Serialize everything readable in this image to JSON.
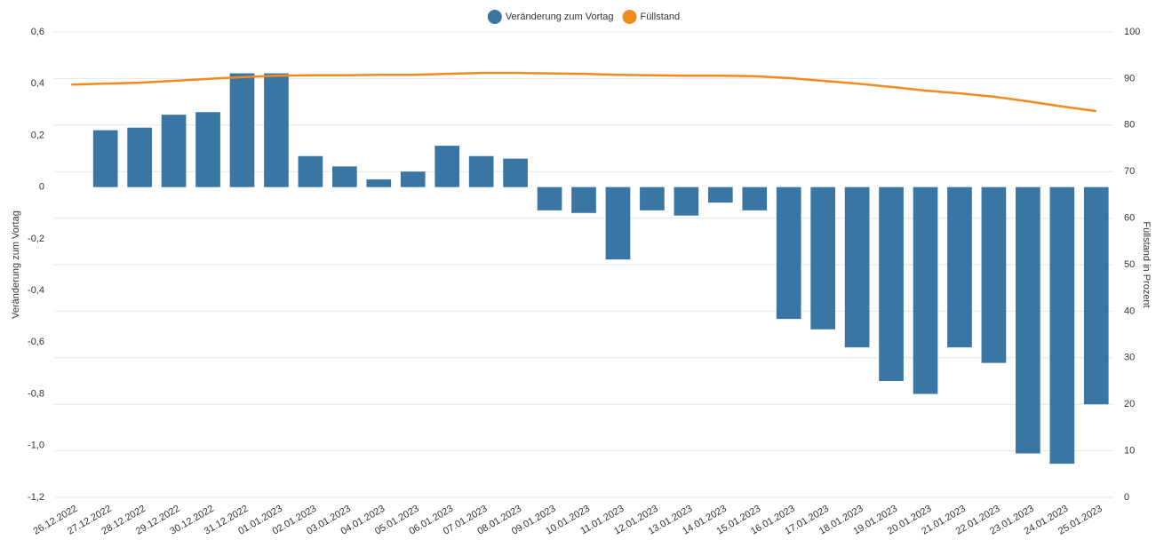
{
  "chart_data": {
    "type": "bar-line",
    "categories": [
      "26.12.2022",
      "27.12.2022",
      "28.12.2022",
      "29.12.2022",
      "30.12.2022",
      "31.12.2022",
      "01.01.2023",
      "02.01.2023",
      "03.01.2023",
      "04.01.2023",
      "05.01.2023",
      "06.01.2023",
      "07.01.2023",
      "08.01.2023",
      "09.01.2023",
      "10.01.2023",
      "11.01.2023",
      "12.01.2023",
      "13.01.2023",
      "14.01.2023",
      "15.01.2023",
      "16.01.2023",
      "17.01.2023",
      "18.01.2023",
      "19.01.2023",
      "20.01.2023",
      "21.01.2023",
      "22.01.2023",
      "23.01.2023",
      "24.01.2023",
      "25.01.2023"
    ],
    "series": [
      {
        "name": "Veränderung zum Vortag",
        "type": "bar",
        "color": "#3a76a3",
        "values": [
          null,
          0.22,
          0.23,
          0.28,
          0.29,
          0.44,
          0.44,
          0.12,
          0.08,
          0.03,
          0.06,
          0.16,
          0.12,
          0.11,
          -0.09,
          -0.1,
          -0.28,
          -0.09,
          -0.11,
          -0.06,
          -0.09,
          -0.51,
          -0.55,
          -0.62,
          -0.75,
          -0.8,
          -0.62,
          -0.68,
          -1.03,
          -1.07,
          -0.84
        ]
      },
      {
        "name": "Füllstand",
        "type": "line",
        "axis": "y2",
        "color": "#f28a1e",
        "values": [
          88.7,
          88.9,
          89.1,
          89.5,
          89.9,
          90.3,
          90.6,
          90.7,
          90.7,
          90.8,
          90.8,
          91.0,
          91.2,
          91.2,
          91.1,
          91.0,
          90.8,
          90.7,
          90.6,
          90.6,
          90.5,
          90.1,
          89.5,
          88.9,
          88.2,
          87.4,
          86.8,
          86.1,
          85.1,
          84.0,
          83.0
        ]
      }
    ],
    "y_label": "Veränderung zum Vortag",
    "y2_label": "Füllstand in Prozent",
    "ylim": [
      -1.2,
      0.6
    ],
    "yticks": [
      {
        "value": 0.6,
        "label": "0,6"
      },
      {
        "value": 0.4,
        "label": "0,4"
      },
      {
        "value": 0.2,
        "label": "0,2"
      },
      0,
      {
        "value": -0.2,
        "label": "-0,2"
      },
      {
        "value": -0.4,
        "label": "-0,4"
      },
      {
        "value": -0.6,
        "label": "-0,6"
      },
      {
        "value": -0.8,
        "label": "-0,8"
      },
      {
        "value": -1.0,
        "label": "-1,0"
      },
      {
        "value": -1.2,
        "label": "-1,2"
      }
    ],
    "y2lim": [
      0,
      100
    ],
    "y2ticks": [
      0,
      10,
      20,
      30,
      40,
      50,
      60,
      70,
      80,
      90,
      100
    ],
    "grid": true,
    "legend": "top"
  }
}
